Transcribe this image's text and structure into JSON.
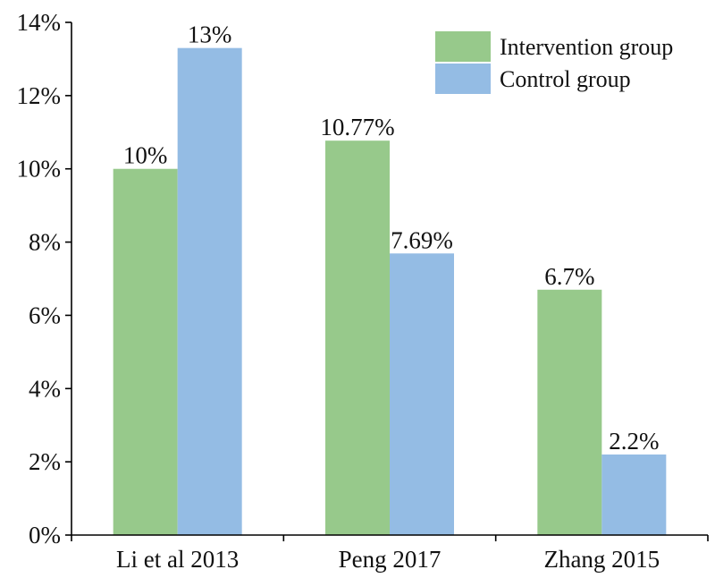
{
  "chart_data": {
    "type": "bar",
    "title": "",
    "xlabel": "",
    "ylabel": "",
    "ylim": [
      0,
      14
    ],
    "y_ticks": [
      0,
      2,
      4,
      6,
      8,
      10,
      12,
      14
    ],
    "y_tick_labels": [
      "0%",
      "2%",
      "4%",
      "6%",
      "8%",
      "10%",
      "12%",
      "14%"
    ],
    "grid": false,
    "legend_position": "top-right",
    "categories": [
      "Li et al 2013",
      "Peng 2017",
      "Zhang 2015"
    ],
    "series": [
      {
        "name": "Intervention group",
        "color": "#97c98b",
        "values": [
          10,
          10.77,
          6.7
        ],
        "labels": [
          "10%",
          "10.77%",
          "6.7%"
        ]
      },
      {
        "name": "Control group",
        "color": "#94bce4",
        "values": [
          13.3,
          7.69,
          2.2
        ],
        "labels": [
          "13%",
          "7.69%",
          "2.2%"
        ]
      }
    ]
  }
}
